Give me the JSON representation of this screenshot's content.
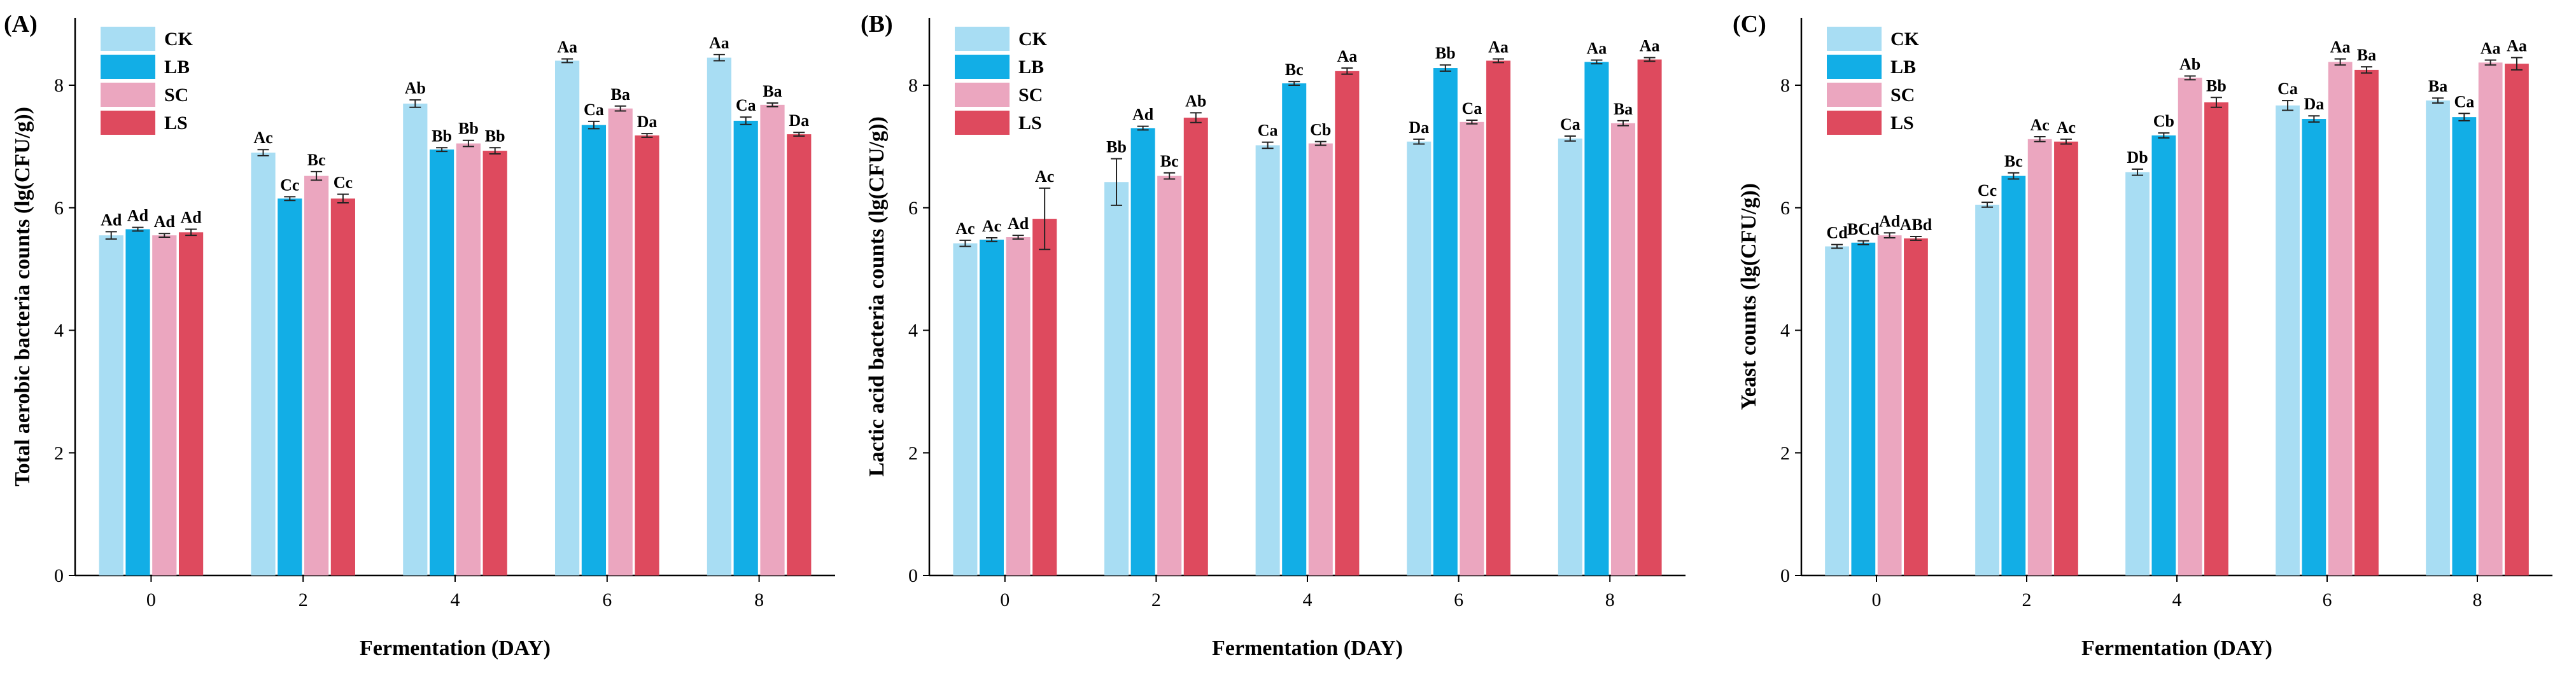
{
  "colors": {
    "CK": "#A8DDF3",
    "LB": "#12AEE6",
    "SC": "#EBA6BF",
    "LS": "#DE4A5E"
  },
  "chart_data": [
    {
      "type": "bar",
      "panel_label": "(A)",
      "xlabel": "Fermentation (DAY)",
      "ylabel": "Total aerobic bacteria counts (lg(CFU/g))",
      "categories": [
        "0",
        "2",
        "4",
        "6",
        "8"
      ],
      "ylim": [
        0,
        9.1
      ],
      "yticks": [
        0,
        2,
        4,
        6,
        8
      ],
      "legend": [
        "CK",
        "LB",
        "SC",
        "LS"
      ],
      "legend_position": "top-left",
      "series": [
        {
          "name": "CK",
          "values": [
            5.55,
            6.9,
            7.7,
            8.4,
            8.45
          ],
          "errors": [
            0.06,
            0.05,
            0.06,
            0.03,
            0.05
          ],
          "labels": [
            "Ad",
            "Ac",
            "Ab",
            "Aa",
            "Aa"
          ]
        },
        {
          "name": "LB",
          "values": [
            5.65,
            6.15,
            6.95,
            7.35,
            7.42
          ],
          "errors": [
            0.03,
            0.03,
            0.03,
            0.06,
            0.06
          ],
          "labels": [
            "Ad",
            "Cc",
            "Bb",
            "Ca",
            "Ca"
          ]
        },
        {
          "name": "SC",
          "values": [
            5.55,
            6.52,
            7.05,
            7.62,
            7.68
          ],
          "errors": [
            0.03,
            0.07,
            0.05,
            0.04,
            0.03
          ],
          "labels": [
            "Ad",
            "Bc",
            "Bb",
            "Ba",
            "Ba"
          ]
        },
        {
          "name": "LS",
          "values": [
            5.6,
            6.15,
            6.93,
            7.18,
            7.2
          ],
          "errors": [
            0.05,
            0.07,
            0.05,
            0.03,
            0.03
          ],
          "labels": [
            "Ad",
            "Cc",
            "Bb",
            "Da",
            "Da"
          ]
        }
      ]
    },
    {
      "type": "bar",
      "panel_label": "(B)",
      "xlabel": "Fermentation (DAY)",
      "ylabel": "Lactic acid bacteria counts (lg(CFU/g))",
      "categories": [
        "0",
        "2",
        "4",
        "6",
        "8"
      ],
      "ylim": [
        0,
        9.1
      ],
      "yticks": [
        0,
        2,
        4,
        6,
        8
      ],
      "legend": [
        "CK",
        "LB",
        "SC",
        "LS"
      ],
      "legend_position": "top-left",
      "series": [
        {
          "name": "CK",
          "values": [
            5.42,
            6.42,
            7.02,
            7.08,
            7.13
          ],
          "errors": [
            0.05,
            0.38,
            0.05,
            0.04,
            0.04
          ],
          "labels": [
            "Ac",
            "Bb",
            "Ca",
            "Da",
            "Ca"
          ]
        },
        {
          "name": "LB",
          "values": [
            5.48,
            7.3,
            8.03,
            8.28,
            8.38
          ],
          "errors": [
            0.03,
            0.03,
            0.03,
            0.05,
            0.03
          ],
          "labels": [
            "Ac",
            "Ad",
            "Bc",
            "Bb",
            "Aa"
          ]
        },
        {
          "name": "SC",
          "values": [
            5.52,
            6.52,
            7.05,
            7.4,
            7.38
          ],
          "errors": [
            0.03,
            0.05,
            0.03,
            0.03,
            0.04
          ],
          "labels": [
            "Ad",
            "Bc",
            "Cb",
            "Ca",
            "Ba"
          ]
        },
        {
          "name": "LS",
          "values": [
            5.82,
            7.47,
            8.23,
            8.4,
            8.42
          ],
          "errors": [
            0.5,
            0.08,
            0.05,
            0.03,
            0.03
          ],
          "labels": [
            "Ac",
            "Ab",
            "Aa",
            "Aa",
            "Aa"
          ]
        }
      ]
    },
    {
      "type": "bar",
      "panel_label": "(C)",
      "xlabel": "Fermentation (DAY)",
      "ylabel": "Yeast counts (lg(CFU/g))",
      "categories": [
        "0",
        "2",
        "4",
        "6",
        "8"
      ],
      "ylim": [
        0,
        9.1
      ],
      "yticks": [
        0,
        2,
        4,
        6,
        8
      ],
      "legend": [
        "CK",
        "LB",
        "SC",
        "LS"
      ],
      "legend_position": "top-left",
      "series": [
        {
          "name": "CK",
          "values": [
            5.37,
            6.05,
            6.58,
            7.67,
            7.75
          ],
          "errors": [
            0.03,
            0.04,
            0.05,
            0.08,
            0.04
          ],
          "labels": [
            "Cd",
            "Cc",
            "Db",
            "Ca",
            "Ba"
          ]
        },
        {
          "name": "LB",
          "values": [
            5.43,
            6.52,
            7.18,
            7.45,
            7.48
          ],
          "errors": [
            0.03,
            0.05,
            0.04,
            0.05,
            0.06
          ],
          "labels": [
            "BCd",
            "Bc",
            "Cb",
            "Da",
            "Ca"
          ]
        },
        {
          "name": "SC",
          "values": [
            5.55,
            7.12,
            8.12,
            8.38,
            8.37
          ],
          "errors": [
            0.04,
            0.04,
            0.03,
            0.05,
            0.04
          ],
          "labels": [
            "Ad",
            "Ac",
            "Ab",
            "Aa",
            "Aa"
          ]
        },
        {
          "name": "LS",
          "values": [
            5.5,
            7.08,
            7.72,
            8.25,
            8.35
          ],
          "errors": [
            0.03,
            0.04,
            0.08,
            0.05,
            0.1
          ],
          "labels": [
            "ABd",
            "Ac",
            "Bb",
            "Ba",
            "Aa"
          ]
        }
      ]
    }
  ]
}
